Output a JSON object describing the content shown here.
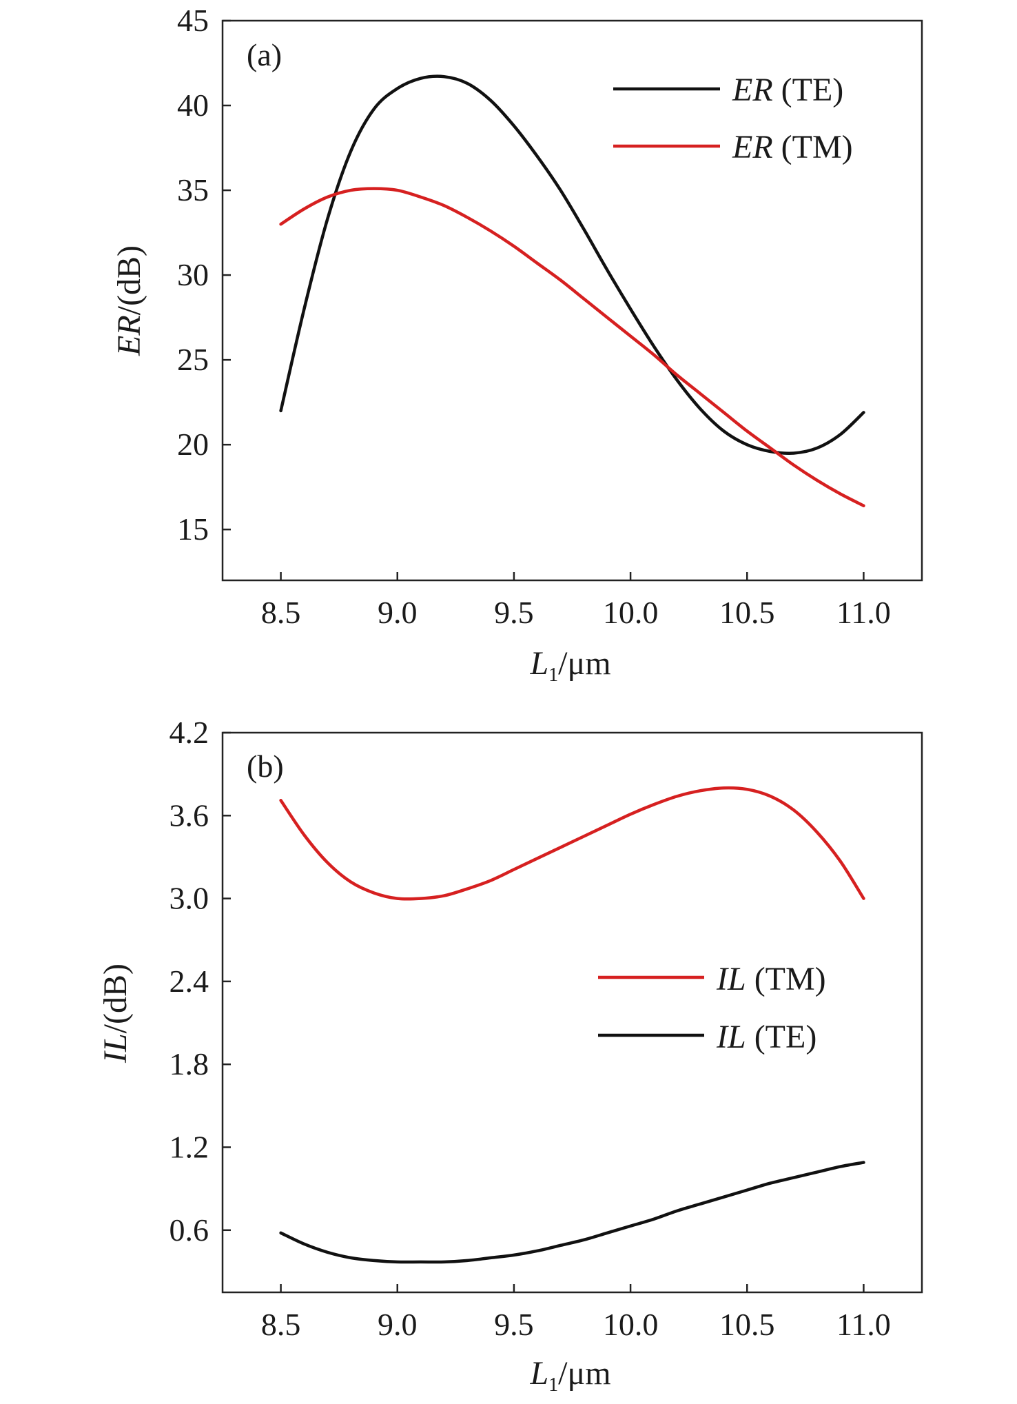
{
  "chart_data": [
    {
      "type": "line",
      "panel_label": "(a)",
      "xlabel": {
        "main": "L",
        "sub": "1",
        "unit": "/μm"
      },
      "ylabel": {
        "main": "ER",
        "unit": "/(dB)"
      },
      "xlim": [
        8.25,
        11.25
      ],
      "ylim": [
        12,
        45
      ],
      "xticks": [
        "8.5",
        "9.0",
        "9.5",
        "10.0",
        "10.5",
        "11.0"
      ],
      "yticks": [
        "15",
        "20",
        "25",
        "30",
        "35",
        "40",
        "45"
      ],
      "grid": false,
      "legend_position": "top-right",
      "series": [
        {
          "name": "ER (TE)",
          "legend_main": "ER",
          "legend_rest": " (TE)",
          "color": "#111111",
          "x": [
            8.5,
            8.6,
            8.7,
            8.8,
            8.9,
            9.0,
            9.1,
            9.2,
            9.3,
            9.4,
            9.5,
            9.6,
            9.7,
            9.8,
            9.9,
            10.0,
            10.1,
            10.2,
            10.3,
            10.4,
            10.5,
            10.6,
            10.7,
            10.8,
            10.9,
            11.0
          ],
          "y": [
            22.0,
            28.0,
            33.3,
            37.3,
            39.8,
            41.0,
            41.6,
            41.7,
            41.3,
            40.3,
            38.8,
            37.0,
            35.0,
            32.7,
            30.3,
            28.0,
            25.8,
            23.8,
            22.1,
            20.8,
            20.0,
            19.6,
            19.5,
            19.8,
            20.6,
            21.9
          ]
        },
        {
          "name": "ER (TM)",
          "legend_main": "ER",
          "legend_rest": " (TM)",
          "color": "#d62020",
          "x": [
            8.5,
            8.6,
            8.7,
            8.8,
            8.9,
            9.0,
            9.1,
            9.2,
            9.3,
            9.4,
            9.5,
            9.6,
            9.7,
            9.8,
            9.9,
            10.0,
            10.1,
            10.2,
            10.3,
            10.4,
            10.5,
            10.6,
            10.7,
            10.8,
            10.9,
            11.0
          ],
          "y": [
            33.0,
            33.9,
            34.6,
            35.0,
            35.1,
            35.0,
            34.6,
            34.1,
            33.4,
            32.6,
            31.7,
            30.7,
            29.7,
            28.6,
            27.5,
            26.4,
            25.3,
            24.1,
            23.0,
            21.9,
            20.8,
            19.8,
            18.8,
            17.9,
            17.1,
            16.4
          ]
        }
      ]
    },
    {
      "type": "line",
      "panel_label": "(b)",
      "xlabel": {
        "main": "L",
        "sub": "1",
        "unit": "/μm"
      },
      "ylabel": {
        "main": "IL",
        "unit": "/(dB)"
      },
      "xlim": [
        8.25,
        11.25
      ],
      "ylim": [
        0.15,
        4.2
      ],
      "xticks": [
        "8.5",
        "9.0",
        "9.5",
        "10.0",
        "10.5",
        "11.0"
      ],
      "yticks": [
        "0.6",
        "1.2",
        "1.8",
        "2.4",
        "3.0",
        "3.6",
        "4.2"
      ],
      "grid": false,
      "legend_position": "center-right",
      "series": [
        {
          "name": "IL (TM)",
          "legend_main": "IL",
          "legend_rest": " (TM)",
          "color": "#d62020",
          "x": [
            8.5,
            8.6,
            8.7,
            8.8,
            8.9,
            9.0,
            9.1,
            9.2,
            9.3,
            9.4,
            9.5,
            9.6,
            9.7,
            9.8,
            9.9,
            10.0,
            10.1,
            10.2,
            10.3,
            10.4,
            10.5,
            10.6,
            10.7,
            10.8,
            10.9,
            11.0
          ],
          "y": [
            3.71,
            3.46,
            3.26,
            3.12,
            3.04,
            3.0,
            3.0,
            3.02,
            3.07,
            3.13,
            3.21,
            3.29,
            3.37,
            3.45,
            3.53,
            3.61,
            3.68,
            3.74,
            3.78,
            3.8,
            3.79,
            3.74,
            3.64,
            3.48,
            3.27,
            3.0
          ]
        },
        {
          "name": "IL (TE)",
          "legend_main": "IL",
          "legend_rest": " (TE)",
          "color": "#111111",
          "x": [
            8.5,
            8.6,
            8.7,
            8.8,
            8.9,
            9.0,
            9.1,
            9.2,
            9.3,
            9.4,
            9.5,
            9.6,
            9.7,
            9.8,
            9.9,
            10.0,
            10.1,
            10.2,
            10.3,
            10.4,
            10.5,
            10.6,
            10.7,
            10.8,
            10.9,
            11.0
          ],
          "y": [
            0.58,
            0.5,
            0.44,
            0.4,
            0.38,
            0.37,
            0.37,
            0.37,
            0.38,
            0.4,
            0.42,
            0.45,
            0.49,
            0.53,
            0.58,
            0.63,
            0.68,
            0.74,
            0.79,
            0.84,
            0.89,
            0.94,
            0.98,
            1.02,
            1.06,
            1.09
          ]
        }
      ]
    }
  ]
}
